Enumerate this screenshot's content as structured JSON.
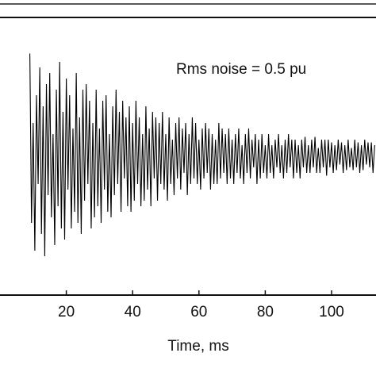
{
  "chart_data": {
    "type": "line",
    "annotation": "Rms noise = 0.5 pu",
    "xlabel": "Time, ms",
    "xlim": [
      0,
      113.4
    ],
    "xticks": [
      20,
      40,
      60,
      80,
      100
    ],
    "ylim": [
      -2.5,
      2.5
    ],
    "color": "#000000",
    "x": [
      9,
      9.5,
      10,
      10.5,
      11,
      11.5,
      12,
      12.5,
      13,
      13.5,
      14,
      14.5,
      15,
      15.5,
      16,
      16.5,
      17,
      17.5,
      18,
      18.5,
      19,
      19.5,
      20,
      20.5,
      21,
      21.5,
      22,
      22.5,
      23,
      23.5,
      24,
      24.5,
      25,
      25.5,
      26,
      26.5,
      27,
      27.5,
      28,
      28.5,
      29,
      29.5,
      30,
      30.5,
      31,
      31.5,
      32,
      32.5,
      33,
      33.5,
      34,
      34.5,
      35,
      35.5,
      36,
      36.5,
      37,
      37.5,
      38,
      38.5,
      39,
      39.5,
      40,
      40.5,
      41,
      41.5,
      42,
      42.5,
      43,
      43.5,
      44,
      44.5,
      45,
      45.5,
      46,
      46.5,
      47,
      47.5,
      48,
      48.5,
      49,
      49.5,
      50,
      50.5,
      51,
      51.5,
      52,
      52.5,
      53,
      53.5,
      54,
      54.5,
      55,
      55.5,
      56,
      56.5,
      57,
      57.5,
      58,
      58.5,
      59,
      59.5,
      60,
      60.5,
      61,
      61.5,
      62,
      62.5,
      63,
      63.5,
      64,
      64.5,
      65,
      65.5,
      66,
      66.5,
      67,
      67.5,
      68,
      68.5,
      69,
      69.5,
      70,
      70.5,
      71,
      71.5,
      72,
      72.5,
      73,
      73.5,
      74,
      74.5,
      75,
      75.5,
      76,
      76.5,
      77,
      77.5,
      78,
      78.5,
      79,
      79.5,
      80,
      80.5,
      81,
      81.5,
      82,
      82.5,
      83,
      83.5,
      84,
      84.5,
      85,
      85.5,
      86,
      86.5,
      87,
      87.5,
      88,
      88.5,
      89,
      89.5,
      90,
      90.5,
      91,
      91.5,
      92,
      92.5,
      93,
      93.5,
      94,
      94.5,
      95,
      95.5,
      96,
      96.5,
      97,
      97.5,
      98,
      98.5,
      99,
      99.5,
      100,
      100.5,
      101,
      101.5,
      102,
      102.5,
      103,
      103.5,
      104,
      104.5,
      105,
      105.5,
      106,
      106.5,
      107,
      107.5,
      108,
      108.5,
      109,
      109.5,
      110,
      110.5,
      111,
      111.5,
      112,
      112.5,
      113
    ],
    "values": [
      1.85,
      -1.2,
      0.6,
      -1.7,
      1.1,
      -0.5,
      1.6,
      -1.4,
      0.9,
      -1.8,
      1.3,
      -0.7,
      1.5,
      -1.1,
      0.4,
      -1.6,
      1.2,
      -0.9,
      1.7,
      -1.3,
      0.8,
      -1.5,
      1.4,
      -0.6,
      1.1,
      -1.3,
      0.5,
      -1.0,
      1.5,
      -1.2,
      0.7,
      -1.4,
      1.2,
      -0.8,
      1.3,
      -0.5,
      1.0,
      -1.3,
      0.6,
      -1.1,
      1.2,
      -0.9,
      0.5,
      -1.2,
      1.0,
      -0.6,
      1.1,
      -1.0,
      0.4,
      -1.1,
      0.9,
      -0.7,
      1.2,
      -0.5,
      0.8,
      -1.0,
      1.0,
      -0.4,
      0.7,
      -0.9,
      0.9,
      -1.0,
      0.6,
      -0.8,
      1.0,
      -0.5,
      0.7,
      -0.9,
      0.4,
      -0.8,
      0.9,
      -0.6,
      0.5,
      -0.9,
      0.8,
      -0.4,
      0.7,
      -0.8,
      0.6,
      -0.5,
      0.8,
      -0.6,
      0.4,
      -0.8,
      0.7,
      -0.5,
      0.3,
      -0.7,
      0.6,
      -0.4,
      0.7,
      -0.6,
      0.5,
      -0.3,
      0.6,
      -0.7,
      0.4,
      -0.5,
      0.7,
      -0.4,
      0.6,
      -0.5,
      0.3,
      -0.6,
      0.5,
      -0.4,
      0.6,
      -0.3,
      0.5,
      -0.6,
      0.4,
      -0.5,
      0.3,
      -0.5,
      0.6,
      -0.4,
      0.5,
      -0.3,
      0.4,
      -0.5,
      0.5,
      -0.4,
      0.3,
      -0.5,
      0.4,
      -0.3,
      0.5,
      -0.4,
      0.2,
      -0.5,
      0.4,
      -0.3,
      0.5,
      -0.4,
      0.3,
      -0.2,
      0.4,
      -0.5,
      0.3,
      -0.4,
      0.4,
      -0.3,
      0.2,
      -0.4,
      0.4,
      -0.3,
      0.2,
      -0.4,
      0.3,
      -0.2,
      0.4,
      -0.3,
      0.2,
      -0.4,
      0.3,
      -0.3,
      0.4,
      -0.2,
      0.3,
      -0.4,
      0.3,
      -0.3,
      0.2,
      -0.4,
      0.3,
      -0.2,
      0.35,
      -0.3,
      0.2,
      -0.3,
      0.3,
      -0.2,
      0.35,
      -0.3,
      0.15,
      -0.3,
      0.3,
      -0.2,
      0.3,
      -0.35,
      0.3,
      -0.2,
      0.25,
      -0.3,
      0.2,
      -0.25,
      0.3,
      -0.15,
      0.25,
      -0.3,
      0.2,
      -0.25,
      0.3,
      -0.2,
      0.15,
      -0.25,
      0.3,
      -0.2,
      0.25,
      -0.3,
      0.2,
      -0.25,
      0.3,
      -0.15,
      0.25,
      -0.2,
      0.25,
      -0.3,
      0.2
    ]
  }
}
